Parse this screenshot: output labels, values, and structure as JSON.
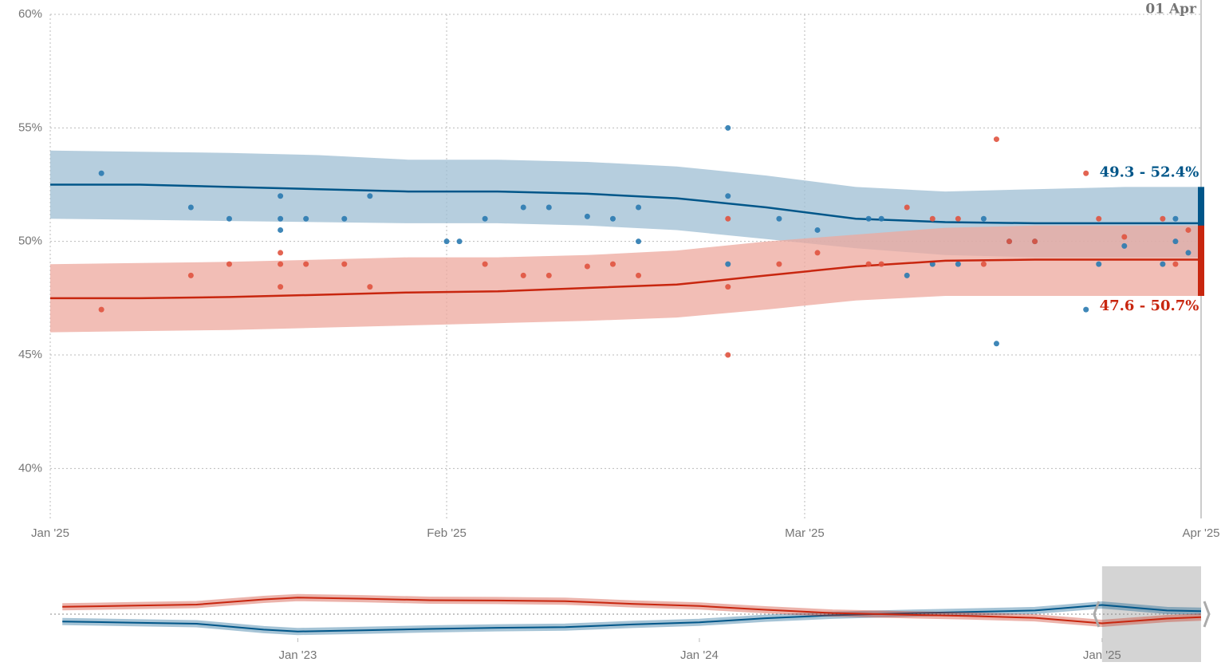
{
  "chart_data": [
    {
      "type": "line",
      "date_label": "01 Apr",
      "x": [
        "2025-01-01",
        "2025-01-08",
        "2025-01-15",
        "2025-01-22",
        "2025-01-29",
        "2025-02-05",
        "2025-02-12",
        "2025-02-19",
        "2025-02-26",
        "2025-03-05",
        "2025-03-12",
        "2025-03-19",
        "2025-03-26",
        "2025-04-01"
      ],
      "xlim": [
        "2025-01-01",
        "2025-04-01"
      ],
      "xticks": [
        {
          "value": "2025-01-01",
          "label": "Jan '25"
        },
        {
          "value": "2025-02-01",
          "label": "Feb '25"
        },
        {
          "value": "2025-03-01",
          "label": "Mar '25"
        },
        {
          "value": "2025-04-01",
          "label": "Apr '25"
        }
      ],
      "ylim": [
        37.8,
        60
      ],
      "yticks": [
        {
          "value": 40,
          "label": "40%"
        },
        {
          "value": 45,
          "label": "45%"
        },
        {
          "value": 50,
          "label": "50%"
        },
        {
          "value": 55,
          "label": "55%"
        },
        {
          "value": 60,
          "label": "60%"
        }
      ],
      "grid": true,
      "series": [
        {
          "color": "#005689",
          "band_color": "#9dbdd3",
          "point_color": "#2a7ab0",
          "values": [
            52.5,
            52.5,
            52.4,
            52.3,
            52.2,
            52.2,
            52.1,
            51.9,
            51.5,
            51.0,
            50.85,
            50.8,
            50.8,
            50.8
          ],
          "lower": [
            51.0,
            50.95,
            50.9,
            50.85,
            50.8,
            50.8,
            50.7,
            50.5,
            50.1,
            49.7,
            49.4,
            49.3,
            49.3,
            49.3
          ],
          "upper": [
            54.0,
            53.95,
            53.9,
            53.8,
            53.6,
            53.6,
            53.5,
            53.3,
            52.9,
            52.4,
            52.2,
            52.3,
            52.4,
            52.4
          ],
          "points_x": [
            "2025-01-05",
            "2025-01-12",
            "2025-01-15",
            "2025-01-19",
            "2025-01-19",
            "2025-01-19",
            "2025-01-21",
            "2025-01-24",
            "2025-01-26",
            "2025-02-01",
            "2025-02-02",
            "2025-02-04",
            "2025-02-07",
            "2025-02-09",
            "2025-02-12",
            "2025-02-14",
            "2025-02-16",
            "2025-02-16",
            "2025-02-23",
            "2025-02-23",
            "2025-02-23",
            "2025-02-27",
            "2025-03-02",
            "2025-03-06",
            "2025-03-07",
            "2025-03-09",
            "2025-03-11",
            "2025-03-13",
            "2025-03-15",
            "2025-03-16",
            "2025-03-17",
            "2025-03-19",
            "2025-03-23",
            "2025-03-24",
            "2025-03-26",
            "2025-03-29",
            "2025-03-30",
            "2025-03-30",
            "2025-03-31"
          ],
          "points_y": [
            53.0,
            51.5,
            51.0,
            52.0,
            51.0,
            50.5,
            51.0,
            51.0,
            52.0,
            50.0,
            50.0,
            51.0,
            51.5,
            51.5,
            51.1,
            51.0,
            51.5,
            50.0,
            55.0,
            52.0,
            49.0,
            51.0,
            50.5,
            51.0,
            51.0,
            48.5,
            49.0,
            49.0,
            51.0,
            45.5,
            50.0,
            50.0,
            47.0,
            49.0,
            49.8,
            49.0,
            51.0,
            50.0,
            49.5
          ],
          "range": [
            49.3,
            52.4
          ],
          "range_label": "49.3 - 52.4%"
        },
        {
          "color": "#c8260f",
          "band_color": "#eea89e",
          "point_color": "#e0533f",
          "values": [
            47.5,
            47.5,
            47.55,
            47.65,
            47.75,
            47.8,
            47.95,
            48.1,
            48.5,
            48.9,
            49.15,
            49.2,
            49.2,
            49.2
          ],
          "lower": [
            46.0,
            46.05,
            46.1,
            46.2,
            46.3,
            46.4,
            46.5,
            46.65,
            47.0,
            47.4,
            47.6,
            47.6,
            47.6,
            47.6
          ],
          "upper": [
            49.0,
            49.05,
            49.1,
            49.2,
            49.3,
            49.3,
            49.4,
            49.6,
            50.0,
            50.3,
            50.6,
            50.7,
            50.7,
            50.7
          ],
          "points_x": [
            "2025-01-05",
            "2025-01-12",
            "2025-01-15",
            "2025-01-19",
            "2025-01-19",
            "2025-01-19",
            "2025-01-21",
            "2025-01-24",
            "2025-01-26",
            "2025-02-04",
            "2025-02-07",
            "2025-02-09",
            "2025-02-12",
            "2025-02-14",
            "2025-02-16",
            "2025-02-23",
            "2025-02-23",
            "2025-02-23",
            "2025-02-27",
            "2025-03-02",
            "2025-03-06",
            "2025-03-07",
            "2025-03-09",
            "2025-03-11",
            "2025-03-13",
            "2025-03-15",
            "2025-03-16",
            "2025-03-17",
            "2025-03-19",
            "2025-03-23",
            "2025-03-24",
            "2025-03-26",
            "2025-03-29",
            "2025-03-30",
            "2025-03-31"
          ],
          "points_y": [
            47.0,
            48.5,
            49.0,
            49.5,
            49.0,
            48.0,
            49.0,
            49.0,
            48.0,
            49.0,
            48.5,
            48.5,
            48.9,
            49.0,
            48.5,
            51.0,
            48.0,
            45.0,
            49.0,
            49.5,
            49.0,
            49.0,
            51.5,
            51.0,
            51.0,
            49.0,
            54.5,
            50.0,
            50.0,
            53.0,
            51.0,
            50.2,
            51.0,
            49.0,
            50.5
          ],
          "range": [
            47.6,
            50.7
          ],
          "range_label": "47.6 - 50.7%"
        }
      ]
    },
    {
      "type": "line",
      "x": [
        "2022-06-01",
        "2022-08-01",
        "2022-10-01",
        "2022-12-01",
        "2023-01-01",
        "2023-03-01",
        "2023-05-01",
        "2023-07-01",
        "2023-09-01",
        "2023-11-01",
        "2024-01-01",
        "2024-03-01",
        "2024-05-01",
        "2024-07-01",
        "2024-09-01",
        "2024-11-01",
        "2025-01-01",
        "2025-03-01",
        "2025-04-01"
      ],
      "xlim": [
        "2022-05-21",
        "2025-04-01"
      ],
      "xticks": [
        {
          "value": "2023-01-01",
          "label": "Jan '23"
        },
        {
          "value": "2024-01-01",
          "label": "Jan '24"
        },
        {
          "value": "2025-01-01",
          "label": "Jan '25"
        }
      ],
      "ylim": [
        37,
        63
      ],
      "yticks": [
        50
      ],
      "selection": [
        "2025-01-01",
        "2025-04-01"
      ],
      "series": [
        {
          "color": "#005689",
          "values": [
            48.0,
            47.7,
            47.4,
            45.8,
            45.3,
            45.6,
            46.0,
            46.3,
            46.5,
            47.2,
            47.8,
            48.9,
            49.7,
            50.2,
            50.6,
            51.0,
            52.5,
            51.0,
            50.8
          ]
        },
        {
          "color": "#c8260f",
          "values": [
            52.0,
            52.3,
            52.6,
            54.0,
            54.5,
            54.2,
            53.8,
            53.7,
            53.5,
            52.8,
            52.2,
            51.2,
            50.3,
            49.9,
            49.5,
            49.0,
            47.5,
            48.8,
            49.2
          ]
        }
      ]
    }
  ]
}
